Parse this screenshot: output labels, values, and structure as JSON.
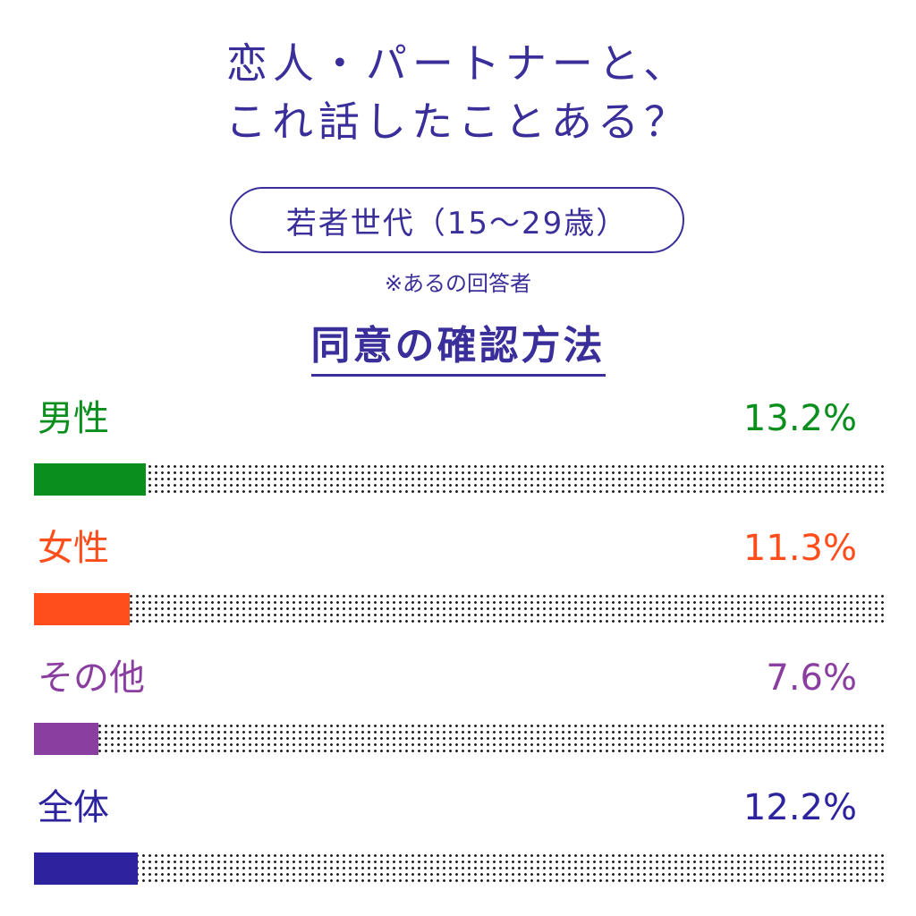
{
  "title": {
    "line1": "恋人・パートナーと、",
    "line2": "これ話したことある？"
  },
  "subtitle": "若者世代（15〜29歳）",
  "note": "※あるの回答者",
  "section_heading": "同意の確認方法",
  "chart_data": {
    "type": "bar",
    "orientation": "horizontal",
    "title": "同意の確認方法",
    "categories": [
      "男性",
      "女性",
      "その他",
      "全体"
    ],
    "values": [
      13.2,
      11.3,
      7.6,
      12.2
    ],
    "value_labels": [
      "13.2%",
      "11.3%",
      "7.6%",
      "12.2%"
    ],
    "colors": [
      "#0a8f1e",
      "#ff4e1c",
      "#8a3ea0",
      "#2e239e"
    ],
    "xlim": [
      0,
      100
    ],
    "unit": "%"
  }
}
